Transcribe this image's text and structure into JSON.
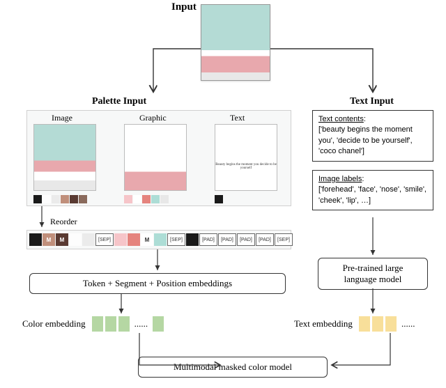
{
  "labels": {
    "input": "Input",
    "palette_input": "Palette Input",
    "text_input": "Text Input",
    "image": "Image",
    "graphic": "Graphic",
    "text": "Text",
    "reorder": "Reorder",
    "token_emb": "Token + Segment + Position embeddings",
    "color_emb": "Color embedding",
    "text_emb": "Text embedding",
    "pretrained": "Pre-trained large language model",
    "multimodal": "Multimodal masked color model",
    "dots": "......",
    "thumb_text": "Beauty begins the moment you decide to be yourself"
  },
  "text_contents": {
    "header": "Text contents",
    "body": "['beauty begins the moment you', 'decide to be yourself', 'coco chanel']"
  },
  "image_labels": {
    "header": "Image labels",
    "body": "['forehead', 'face', 'nose', 'smile', 'cheek', 'lip', …]"
  },
  "tokens": {
    "sep": "[SEP]",
    "pad": "[PAD]",
    "m": "M"
  },
  "palette": {
    "image_swatches": [
      "#1a1a1a",
      "#fdfdfd",
      "#ebebeb",
      "#c08f7b",
      "#5a3a32",
      "#8a6a5c"
    ],
    "graphic_swatches": [
      "#f6c5c9",
      "#ffffff",
      "#e5847e",
      "#adddd6",
      "#e8e8e8"
    ],
    "text_swatches": [
      "#1a1a1a"
    ]
  },
  "token_row": [
    {
      "type": "sw",
      "color": "#1a1a1a"
    },
    {
      "type": "m",
      "color": "#c08f7b"
    },
    {
      "type": "m",
      "color": "#5a3a32"
    },
    {
      "type": "sw",
      "color": "#fdfdfd"
    },
    {
      "type": "sw",
      "color": "#ebebeb"
    },
    {
      "type": "label",
      "text": "[SEP]"
    },
    {
      "type": "sw",
      "color": "#f6c5c9"
    },
    {
      "type": "sw",
      "color": "#e5847e"
    },
    {
      "type": "m",
      "color": "#ffffff",
      "textcolor": "#333"
    },
    {
      "type": "sw",
      "color": "#adddd6"
    },
    {
      "type": "label",
      "text": "[SEP]"
    },
    {
      "type": "sw",
      "color": "#1a1a1a"
    },
    {
      "type": "label",
      "text": "[PAD]"
    },
    {
      "type": "label",
      "text": "[PAD]"
    },
    {
      "type": "label",
      "text": "[PAD]"
    },
    {
      "type": "label",
      "text": "[PAD]"
    },
    {
      "type": "label",
      "text": "[SEP]"
    }
  ],
  "colors": {
    "panel_bg": "#f7f8f8",
    "panel_border": "#d0d0d0",
    "color_emb_sq": "#b5d7a3",
    "text_emb_sq": "#f8df9a",
    "arrow": "#333333"
  }
}
